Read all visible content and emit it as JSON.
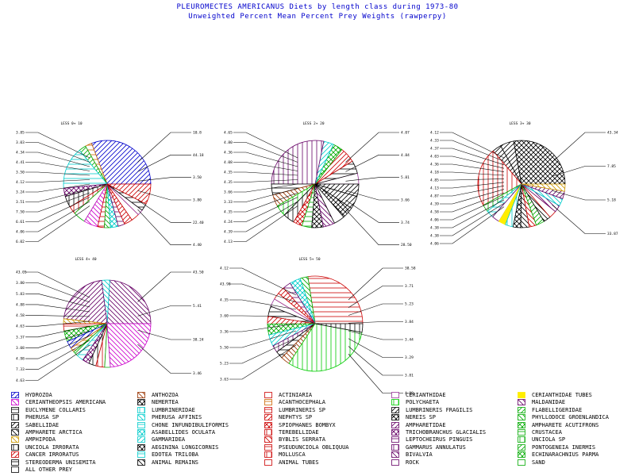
{
  "title_line1": "PLEUROMECTES AMERICANUS Diets by length class during 1973-80",
  "title_line2": "Unweighted Percent Mean Percent Prey Weights (rawperpy)",
  "chart_data": [
    {
      "type": "pie",
      "title": "LESS 0+ 10",
      "values": [
        44.18,
        3.5,
        3.8,
        22.4,
        4.4,
        6.02,
        4.06,
        6.61,
        7.5,
        3.51,
        3.24,
        4.12,
        3.5,
        4.41,
        4.34,
        3.03,
        3.85,
        10.8
      ],
      "labels_left": [
        "3.85",
        "3.03",
        "4.34",
        "4.41",
        "3.50",
        "4.12",
        "3.24",
        "3.51",
        "7.50",
        "6.61",
        "4.06",
        "6.02"
      ],
      "labels_right": [
        "10.8",
        "44.18",
        "3.50",
        "3.80",
        "22.40",
        "4.40"
      ]
    },
    {
      "type": "pie",
      "title": "LESS 2+ 20",
      "values": [
        4.07,
        4.84,
        5.81,
        3.66,
        3.74,
        28.5,
        4.13,
        4.39,
        4.24,
        4.35,
        3.33,
        3.66,
        4.35,
        4.35,
        4.08,
        4.36,
        4.8,
        4.65
      ],
      "labels_left": [
        "4.65",
        "4.80",
        "4.36",
        "4.08",
        "4.35",
        "4.35",
        "3.66",
        "3.33",
        "4.35",
        "4.24",
        "4.39",
        "4.13"
      ],
      "labels_right": [
        "4.07",
        "4.84",
        "5.81",
        "3.66",
        "3.74",
        "28.50"
      ]
    },
    {
      "type": "pie",
      "title": "LESS 3+ 30",
      "values": [
        43.34,
        7.85,
        5.18,
        33.87,
        4.06,
        4.38,
        4.38,
        4.06,
        4.58,
        4.39,
        4.87,
        4.13,
        4.85,
        4.18,
        4.36,
        4.03,
        4.37,
        4.33,
        4.12
      ],
      "labels_left": [
        "4.12",
        "4.33",
        "4.37",
        "4.03",
        "4.36",
        "4.18",
        "4.85",
        "4.13",
        "4.87",
        "4.39",
        "4.58",
        "4.06",
        "4.38",
        "4.38",
        "4.06"
      ],
      "labels_right": [
        "43.34",
        "7.85",
        "5.18",
        "33.87"
      ]
    },
    {
      "type": "pie",
      "title": "LESS 4+ 40",
      "values": [
        43.5,
        5.41,
        38.24,
        3.46,
        4.63,
        7.33,
        4.98,
        3.08,
        3.37,
        4.63,
        4.58,
        4.88,
        5.83,
        3.8,
        43.05
      ],
      "labels_left": [
        "43.05",
        "3.80",
        "5.83",
        "4.88",
        "4.58",
        "4.63",
        "3.37",
        "3.08",
        "4.98",
        "7.33",
        "4.63"
      ],
      "labels_right": [
        "43.50",
        "5.41",
        "38.24",
        "3.46"
      ]
    },
    {
      "type": "pie",
      "title": "LESS 5+ 50",
      "values": [
        38.58,
        3.71,
        5.23,
        3.84,
        3.44,
        3.29,
        3.81,
        4.88,
        3.63,
        5.23,
        5.5,
        3.36,
        3.6,
        4.35,
        43.98,
        4.12
      ],
      "labels_left": [
        "4.12",
        "43.98",
        "4.35",
        "3.60",
        "3.36",
        "5.50",
        "5.23",
        "3.63"
      ],
      "labels_right": [
        "38.58",
        "3.71",
        "5.23",
        "3.84",
        "3.44",
        "3.29",
        "3.81",
        "4.88"
      ]
    }
  ],
  "legend": [
    {
      "label": "HYDROZOA",
      "color": "#0000cc",
      "pattern": "diag-r"
    },
    {
      "label": "ANTHOZOA",
      "color": "#993300",
      "pattern": "diag-l"
    },
    {
      "label": "ACTINIARIA",
      "color": "#cc0000",
      "pattern": "none"
    },
    {
      "label": "CERIANTHIDAE",
      "color": "#993399",
      "pattern": "none"
    },
    {
      "label": "CERIANTHIDAE TUBES",
      "color": "#ffee00",
      "pattern": "solid"
    },
    {
      "label": "CERIANTHEOPSIS AMERICANA",
      "color": "#cc00cc",
      "pattern": "diag-l"
    },
    {
      "label": "NEMERTEA",
      "color": "#000000",
      "pattern": "cross"
    },
    {
      "label": "ACANTHOCEPHALA",
      "color": "#cc6600",
      "pattern": "horiz"
    },
    {
      "label": "POLYCHAETA",
      "color": "#00cc00",
      "pattern": "vert"
    },
    {
      "label": "MALDANIDAE",
      "color": "#660066",
      "pattern": "diag-l"
    },
    {
      "label": "EUCLYMENE COLLARIS",
      "color": "#000000",
      "pattern": "horiz"
    },
    {
      "label": "LUMBRINERIDAE",
      "color": "#00cccc",
      "pattern": "vert"
    },
    {
      "label": "LUMBRINERIS SP",
      "color": "#cc0000",
      "pattern": "horiz"
    },
    {
      "label": "LUMBRINERIS FRAGILIS",
      "color": "#000000",
      "pattern": "diag-r"
    },
    {
      "label": "FLABELLIGERIDAE",
      "color": "#00aa00",
      "pattern": "diag-r"
    },
    {
      "label": "PHERUSA SP",
      "color": "#000000",
      "pattern": "vert"
    },
    {
      "label": "PHERUSA AFFINIS",
      "color": "#00cccc",
      "pattern": "diag-l"
    },
    {
      "label": "NEPHTYS SP",
      "color": "#cc0000",
      "pattern": "diag-r"
    },
    {
      "label": "NEREIS SP",
      "color": "#000000",
      "pattern": "cross"
    },
    {
      "label": "PHYLLODOCE GROENLANDICA",
      "color": "#00aa00",
      "pattern": "diag-l"
    },
    {
      "label": "SABELLIDAE",
      "color": "#000000",
      "pattern": "diag-r"
    },
    {
      "label": "CHONE INFUNDIBULIFORMIS",
      "color": "#00cccc",
      "pattern": "horiz"
    },
    {
      "label": "SPIOPHANES BOMBYX",
      "color": "#cc0000",
      "pattern": "cross"
    },
    {
      "label": "AMPHARETIDAE",
      "color": "#660066",
      "pattern": "diag-r"
    },
    {
      "label": "AMPHARETE ACUTIFRONS",
      "color": "#00aa00",
      "pattern": "cross"
    },
    {
      "label": "AMPHARETE ARCTICA",
      "color": "#000000",
      "pattern": "diag-l"
    },
    {
      "label": "ASABELLIDES OCULATA",
      "color": "#00cccc",
      "pattern": "cross"
    },
    {
      "label": "TEREBELLIDAE",
      "color": "#cc0000",
      "pattern": "vert"
    },
    {
      "label": "TRICHOBRANCHUS GLACIALIS",
      "color": "#660066",
      "pattern": "cross"
    },
    {
      "label": "CRUSTACEA",
      "color": "#00aa00",
      "pattern": "horiz"
    },
    {
      "label": "AMPHIPODA",
      "color": "#cc9900",
      "pattern": "diag-l"
    },
    {
      "label": "GAMMARIDEA",
      "color": "#00cccc",
      "pattern": "diag-r"
    },
    {
      "label": "BYBLIS SERRATA",
      "color": "#cc0000",
      "pattern": "diag-l"
    },
    {
      "label": "LEPTOCHEIRUS PINGUIS",
      "color": "#660066",
      "pattern": "horiz"
    },
    {
      "label": "UNCIOLA SP",
      "color": "#00aa00",
      "pattern": "vert"
    },
    {
      "label": "UNCIOLA IRRORATA",
      "color": "#000000",
      "pattern": "vert"
    },
    {
      "label": "AEGININA LONGICORNIS",
      "color": "#000000",
      "pattern": "cross"
    },
    {
      "label": "PSEUDUNCIOLA OBLIQUUA",
      "color": "#cc0000",
      "pattern": "horiz"
    },
    {
      "label": "GAMMARUS ANNULATUS",
      "color": "#660066",
      "pattern": "vert"
    },
    {
      "label": "PONTOGENEIA INERMIS",
      "color": "#00aa00",
      "pattern": "diag-r"
    },
    {
      "label": "CANCER IRRORATUS",
      "color": "#cc0000",
      "pattern": "diag-r"
    },
    {
      "label": "EDOTEA TRILOBA",
      "color": "#00cccc",
      "pattern": "horiz"
    },
    {
      "label": "MOLLUSCA",
      "color": "#cc0000",
      "pattern": "vert"
    },
    {
      "label": "BIVALVIA",
      "color": "#660066",
      "pattern": "diag-l"
    },
    {
      "label": "ECHINARACHNIUS PARMA",
      "color": "#00aa00",
      "pattern": "cross"
    },
    {
      "label": "STEREODERMA UNISEMITA",
      "color": "#000000",
      "pattern": "horiz"
    },
    {
      "label": "ANIMAL REMAINS",
      "color": "#000000",
      "pattern": "diag-l"
    },
    {
      "label": "ANIMAL TUBES",
      "color": "#cc0000",
      "pattern": "none"
    },
    {
      "label": "ROCK",
      "color": "#660066",
      "pattern": "none"
    },
    {
      "label": "SAND",
      "color": "#00aa00",
      "pattern": "none"
    },
    {
      "label": "ALL OTHER PREY",
      "color": "#000000",
      "pattern": "none"
    }
  ]
}
